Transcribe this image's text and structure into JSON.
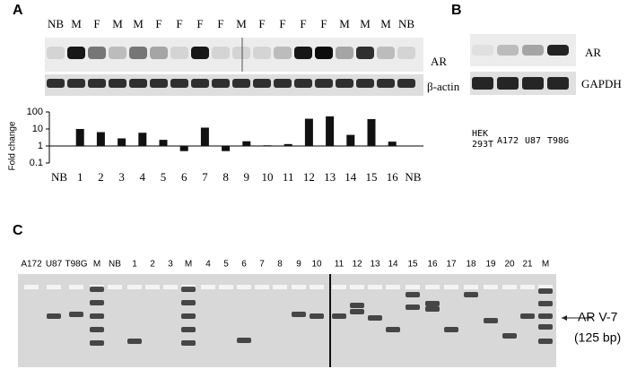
{
  "panels": {
    "a": "A",
    "b": "B",
    "c": "C"
  },
  "blot_a": {
    "lanes": [
      "NB",
      "M",
      "F",
      "M",
      "M",
      "F",
      "F",
      "F",
      "F",
      "M",
      "F",
      "F",
      "F",
      "F",
      "M",
      "M",
      "M",
      "NB"
    ],
    "rows": [
      "AR",
      "β-actin"
    ]
  },
  "chart_data": {
    "type": "bar",
    "y_label": "Fold change",
    "categories": [
      "NB",
      "1",
      "2",
      "3",
      "4",
      "5",
      "6",
      "7",
      "8",
      "9",
      "10",
      "11",
      "12",
      "13",
      "14",
      "15",
      "16",
      "NB"
    ],
    "values": [
      1,
      10,
      6.5,
      2.8,
      6,
      2.3,
      0.5,
      12,
      0.5,
      1.9,
      1.1,
      1.3,
      40,
      55,
      4.5,
      38,
      1.8,
      1
    ],
    "ylim": [
      0.1,
      100
    ],
    "yticks": [
      0.1,
      1,
      10,
      100
    ],
    "log": true,
    "color": "#111111"
  },
  "blot_b": {
    "rows": [
      "AR",
      "GAPDH"
    ],
    "lanes": [
      "HEK 293T",
      "A172",
      "U87",
      "T98G"
    ]
  },
  "gel_c": {
    "lanes": [
      "A172",
      "U87",
      "T98G",
      "M",
      "NB",
      "1",
      "2",
      "3",
      "M",
      "4",
      "5",
      "6",
      "7",
      "8",
      "9",
      "10",
      "11",
      "12",
      "13",
      "14",
      "15",
      "16",
      "17",
      "18",
      "19",
      "20",
      "21",
      "M"
    ],
    "marker": {
      "label": "AR V-7",
      "size": "(125 bp)"
    }
  }
}
